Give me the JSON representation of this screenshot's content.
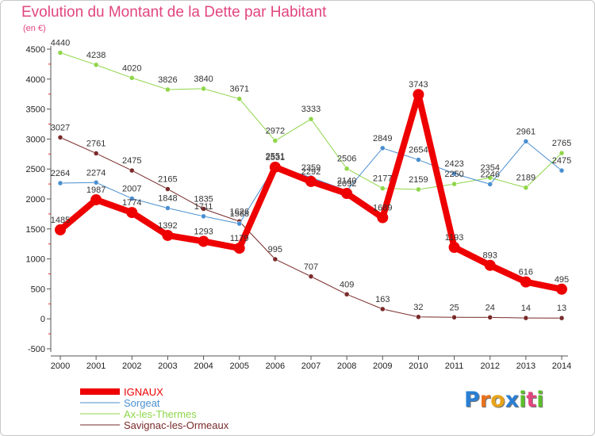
{
  "chart_data": {
    "type": "line",
    "title": "Evolution du Montant de la Dette par Habitant",
    "subtitle": "(en €)",
    "xlabel": "",
    "ylabel": "",
    "ylim": [
      -500,
      4500
    ],
    "yticks": [
      "-500",
      "0",
      "500",
      "1000",
      "1500",
      "2000",
      "2500",
      "3000",
      "3500",
      "4000",
      "4500"
    ],
    "categories": [
      "2000",
      "2001",
      "2002",
      "2003",
      "2004",
      "2005",
      "2006",
      "2007",
      "2008",
      "2009",
      "2010",
      "2011",
      "2012",
      "2013",
      "2014"
    ],
    "grid": false,
    "legend_position": "bottom-left",
    "series": [
      {
        "name": "Savignac-les-Ormeaux",
        "color": "#7a2a2a",
        "values": [
          3027,
          2761,
          2475,
          2165,
          1835,
          1626,
          995,
          707,
          409,
          163,
          32,
          25,
          24,
          14,
          13
        ]
      },
      {
        "name": "Ax-les-Thermes",
        "color": "#8fd64a",
        "values": [
          4440,
          4238,
          4020,
          3826,
          3840,
          3671,
          2972,
          3333,
          2506,
          2177,
          2159,
          2250,
          2354,
          2189,
          2765
        ]
      },
      {
        "name": "Sorgeat",
        "color": "#4a8fd0",
        "values": [
          2264,
          2274,
          2007,
          1848,
          1711,
          1588,
          2551,
          2359,
          2140,
          2849,
          2654,
          2423,
          2246,
          2961,
          2475
        ]
      },
      {
        "name": "IGNAUX",
        "color": "#ee0000",
        "values": [
          1485,
          1987,
          1774,
          1392,
          1293,
          1179,
          2531,
          2292,
          2092,
          1689,
          3743,
          1193,
          893,
          616,
          495
        ]
      }
    ]
  },
  "legend": [
    "IGNAUX",
    "Sorgeat",
    "Ax-les-Thermes",
    "Savignac-les-Ormeaux"
  ],
  "logo": {
    "letters": [
      "P",
      "r",
      "o",
      "x",
      "i",
      "t",
      "i"
    ],
    "colors": [
      "#2a7fd4",
      "#e8721c",
      "#e8a41c",
      "#2a7fd4",
      "#5bbf2a",
      "#e2457f",
      "#5bbf2a"
    ]
  }
}
